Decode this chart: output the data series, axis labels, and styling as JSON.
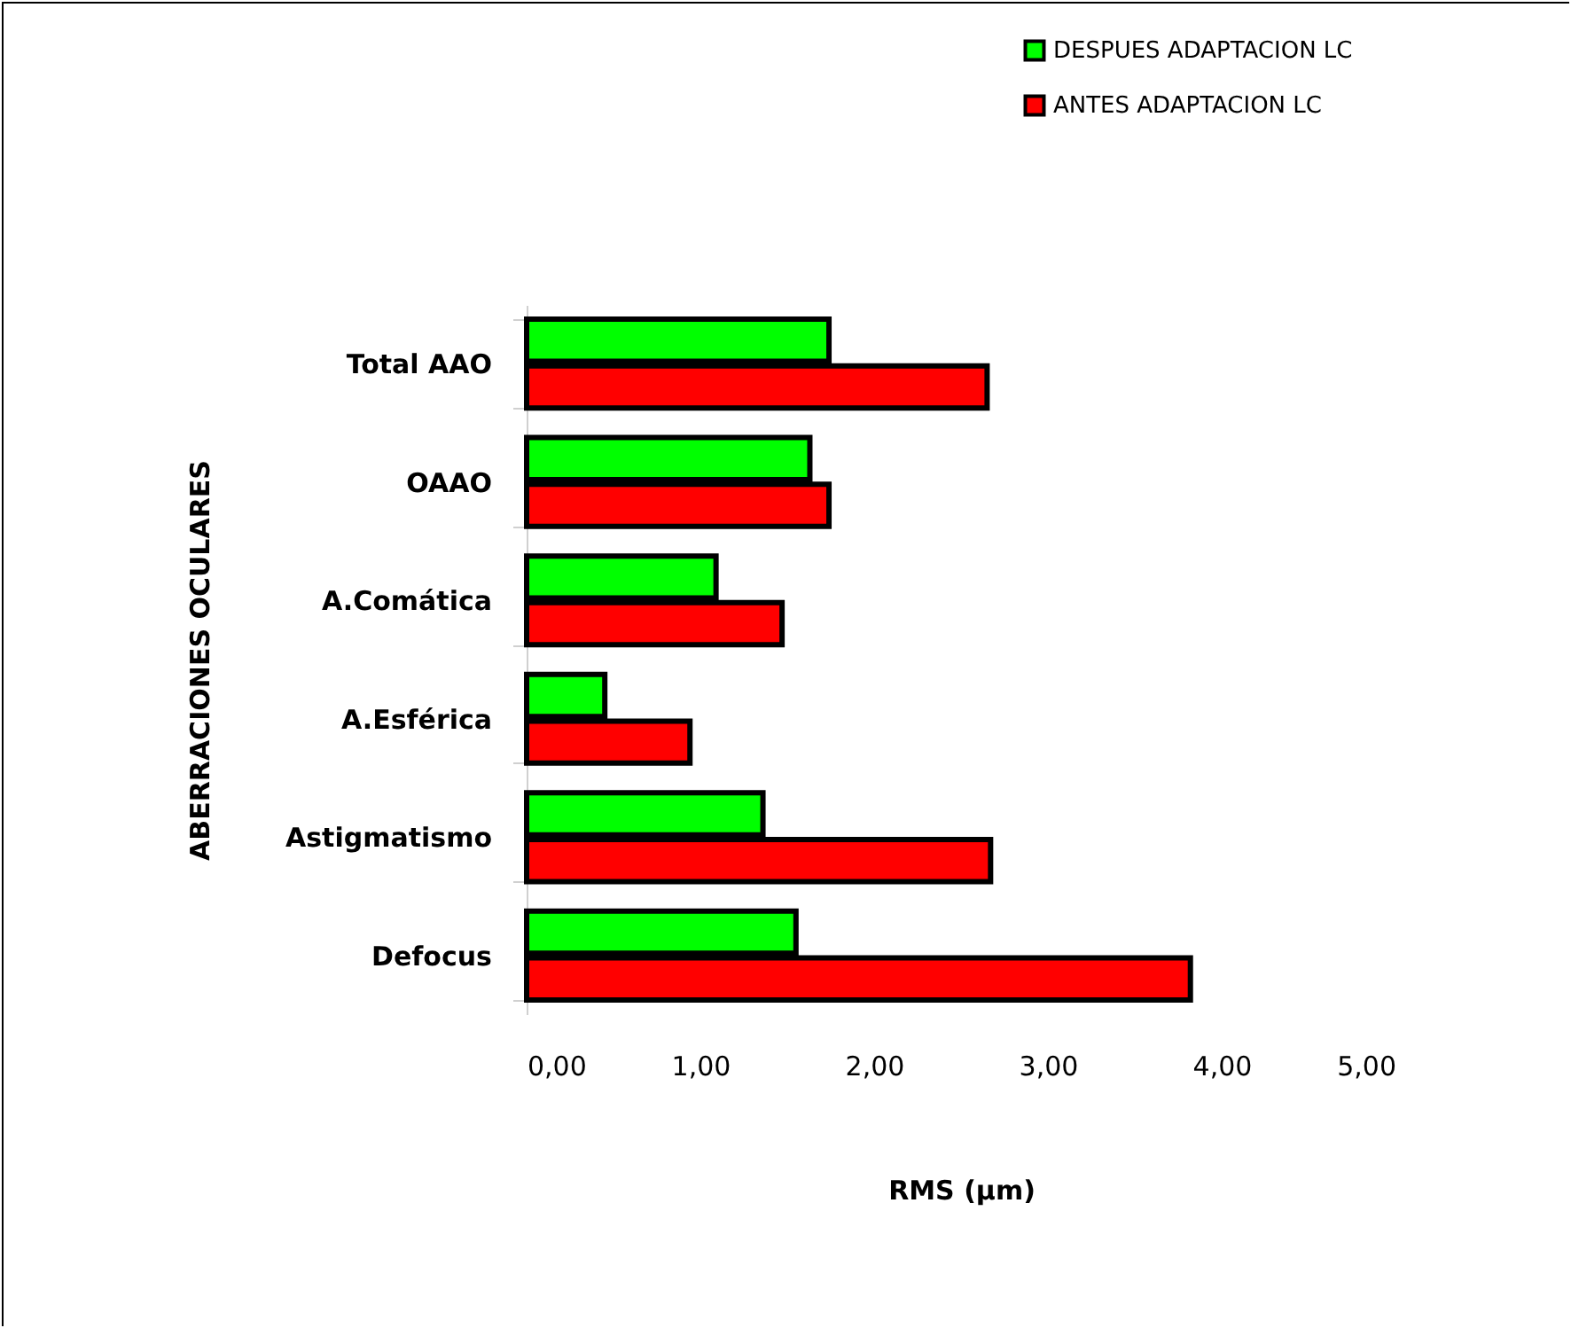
{
  "chart_data": {
    "type": "bar",
    "orientation": "horizontal",
    "xlabel": "RMS  (µm)",
    "ylabel": "ABERRACIONES OCULARES",
    "categories": [
      "Total AAO",
      "OAAO",
      "A.Comática",
      "A.Esférica",
      "Astigmatismo",
      "Defocus"
    ],
    "series": [
      {
        "name": "DESPUES ADAPTACION LC",
        "color": "#00ff00",
        "values": [
          1.74,
          1.63,
          1.09,
          0.45,
          1.36,
          1.55
        ]
      },
      {
        "name": "ANTES ADAPTACION LC",
        "color": "#ff0000",
        "values": [
          2.65,
          1.74,
          1.47,
          0.94,
          2.67,
          3.82
        ]
      }
    ],
    "xlim": [
      0,
      5
    ],
    "xticks": [
      {
        "value": 0,
        "label": "0,00"
      },
      {
        "value": 1,
        "label": "1,00"
      },
      {
        "value": 2,
        "label": "2,00"
      },
      {
        "value": 3,
        "label": "3,00"
      },
      {
        "value": 4,
        "label": "4,00"
      },
      {
        "value": 5,
        "label": "5,00"
      }
    ],
    "grid": false,
    "legend": "top right"
  }
}
